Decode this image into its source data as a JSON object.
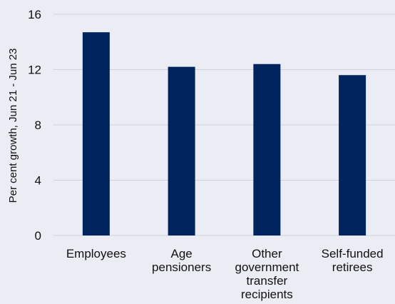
{
  "chart_data": {
    "type": "bar",
    "categories": [
      [
        "Employees"
      ],
      [
        "Age",
        "pensioners"
      ],
      [
        "Other",
        "government",
        "transfer",
        "recipients"
      ],
      [
        "Self-funded",
        "retirees"
      ]
    ],
    "values": [
      14.7,
      12.2,
      12.4,
      11.6
    ],
    "ylabel": "Per cent growth, Jun  21 - Jun 23",
    "ylim": [
      0,
      16
    ],
    "yticks": [
      0,
      4,
      8,
      12,
      16
    ],
    "grid": true,
    "bar_color": "#00245d",
    "grid_color": "#cfd2dc",
    "background": "#ecedf4"
  }
}
